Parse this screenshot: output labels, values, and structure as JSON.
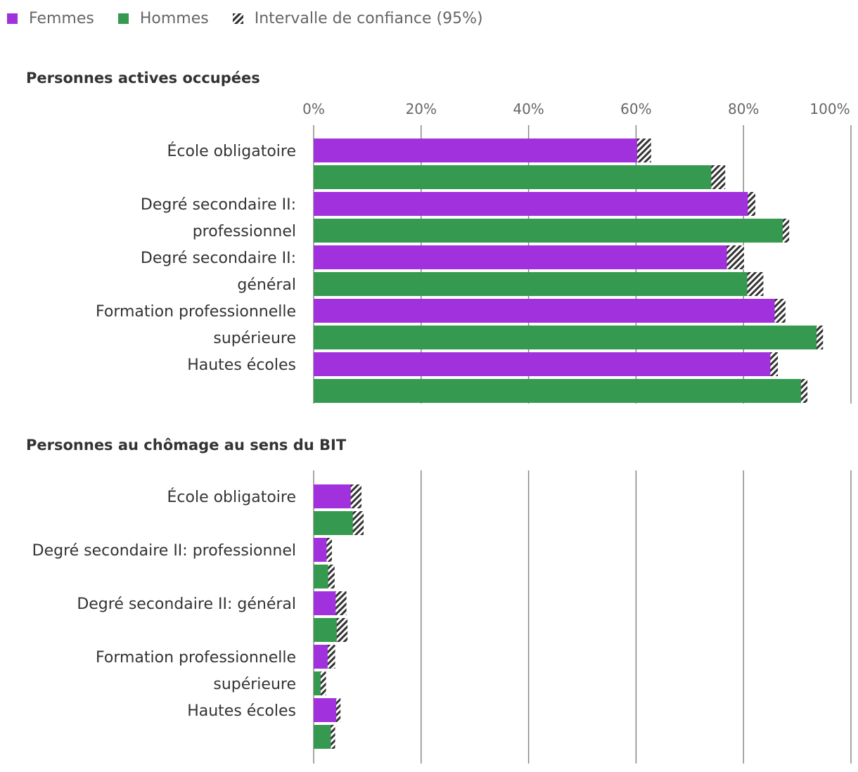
{
  "colors": {
    "femmes": "#a130dd",
    "hommes": "#359a4f",
    "ci_stripe": "#333333",
    "grid": "#888888",
    "tick_text": "#666666",
    "label_text": "#333333"
  },
  "legend": {
    "items": [
      {
        "label": "Femmes",
        "color": "#a130dd",
        "pattern": false
      },
      {
        "label": "Hommes",
        "color": "#359a4f",
        "pattern": false
      },
      {
        "label": "Intervalle de confiance (95%)",
        "color": "#333333",
        "pattern": true
      }
    ]
  },
  "chart_data": [
    {
      "type": "bar",
      "orientation": "horizontal",
      "title": "Personnes actives occupées",
      "xlim": [
        0,
        100
      ],
      "xticks": [
        "0%",
        "20%",
        "40%",
        "60%",
        "80%",
        "100%"
      ],
      "grid": true,
      "categories": [
        [
          "École obligatoire"
        ],
        [
          "Degré secondaire II:",
          "professionnel"
        ],
        [
          "Degré secondaire II:",
          "général"
        ],
        [
          "Formation professionnelle",
          "supérieure"
        ],
        [
          "Hautes écoles"
        ]
      ],
      "series": [
        {
          "name": "Femmes",
          "values": [
            61.5,
            81.5,
            78.5,
            86.8,
            85.7
          ],
          "ci_low": [
            60.2,
            80.8,
            76.9,
            85.8,
            85.0
          ],
          "ci_high": [
            62.8,
            82.2,
            80.1,
            87.8,
            86.4
          ]
        },
        {
          "name": "Hommes",
          "values": [
            75.3,
            87.9,
            82.2,
            94.2,
            91.3
          ],
          "ci_low": [
            74.0,
            87.3,
            80.7,
            93.6,
            90.7
          ],
          "ci_high": [
            76.6,
            88.5,
            83.7,
            94.8,
            91.9
          ]
        }
      ]
    },
    {
      "type": "bar",
      "orientation": "horizontal",
      "title": "Personnes au chômage au sens du BIT",
      "xlim": [
        0,
        100
      ],
      "xticks": [],
      "grid": true,
      "categories": [
        [
          "École obligatoire"
        ],
        [
          "Degré secondaire II: professionnel"
        ],
        [
          "Degré secondaire II: général"
        ],
        [
          "Formation professionnelle",
          "supérieure"
        ],
        [
          "Hautes écoles"
        ]
      ],
      "series": [
        {
          "name": "Femmes",
          "values": [
            7.9,
            2.9,
            5.1,
            3.3,
            4.9
          ],
          "ci_low": [
            6.9,
            2.4,
            4.1,
            2.6,
            4.2
          ],
          "ci_high": [
            8.9,
            3.4,
            6.1,
            4.0,
            5.0
          ]
        },
        {
          "name": "Hommes",
          "values": [
            8.3,
            3.3,
            6.1,
            1.9,
            3.9
          ],
          "ci_low": [
            7.3,
            2.7,
            4.3,
            1.3,
            3.2
          ],
          "ci_high": [
            9.3,
            3.9,
            6.3,
            2.3,
            4.0
          ]
        }
      ]
    }
  ]
}
